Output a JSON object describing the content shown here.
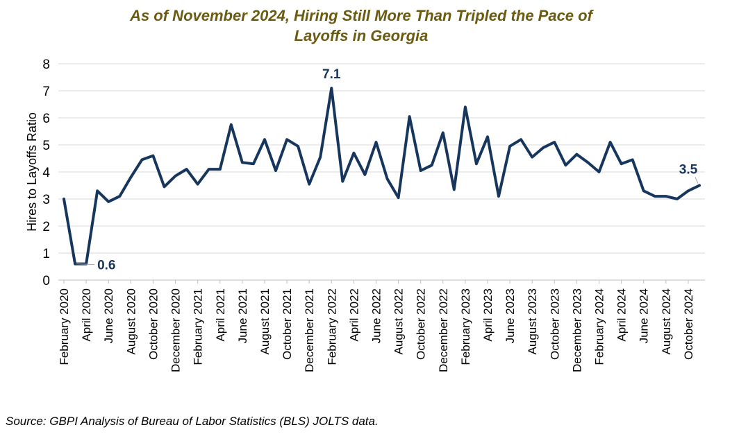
{
  "title_line1": "As of November 2024, Hiring Still More Than Tripled the Pace of",
  "title_line2": "Layoffs in Georgia",
  "source": "Source: GBPI Analysis of Bureau of Labor Statistics (BLS) JOLTS data.",
  "colors": {
    "line": "#17365d",
    "title": "#6b5a12",
    "grid": "#d9d9d9"
  },
  "chart_data": {
    "type": "line",
    "title": "As of November 2024, Hiring Still More Than Tripled the Pace of Layoffs in Georgia",
    "xlabel": "",
    "ylabel": "Hires to Layoffs Ratio",
    "ylim": [
      0,
      8
    ],
    "yticks": [
      0,
      1,
      2,
      3,
      4,
      5,
      6,
      7,
      8
    ],
    "grid": true,
    "legend": "none",
    "x": [
      "February 2020",
      "March 2020",
      "April 2020",
      "May 2020",
      "June 2020",
      "July 2020",
      "August 2020",
      "September 2020",
      "October 2020",
      "November 2020",
      "December 2020",
      "January 2021",
      "February 2021",
      "March 2021",
      "April 2021",
      "May 2021",
      "June 2021",
      "July 2021",
      "August 2021",
      "September 2021",
      "October 2021",
      "November 2021",
      "December 2021",
      "January 2022",
      "February 2022",
      "March 2022",
      "April 2022",
      "May 2022",
      "June 2022",
      "July 2022",
      "August 2022",
      "September 2022",
      "October 2022",
      "November 2022",
      "December 2022",
      "January 2023",
      "February 2023",
      "March 2023",
      "April 2023",
      "May 2023",
      "June 2023",
      "July 2023",
      "August 2023",
      "September 2023",
      "October 2023",
      "November 2023",
      "December 2023",
      "January 2024",
      "February 2024",
      "March 2024",
      "April 2024",
      "May 2024",
      "June 2024",
      "July 2024",
      "August 2024",
      "September 2024",
      "October 2024",
      "November 2024"
    ],
    "x_tick_labels": [
      "February 2020",
      "April 2020",
      "June 2020",
      "August 2020",
      "October 2020",
      "December 2020",
      "February 2021",
      "April 2021",
      "June 2021",
      "August 2021",
      "October 2021",
      "December 2021",
      "February 2022",
      "April 2022",
      "June 2022",
      "August 2022",
      "October 2022",
      "December 2022",
      "February 2023",
      "April 2023",
      "June 2023",
      "August 2023",
      "October 2023",
      "December 2023",
      "February 2024",
      "April 2024",
      "June 2024",
      "August 2024",
      "October 2024"
    ],
    "series": [
      {
        "values": [
          3.0,
          0.6,
          0.6,
          3.3,
          2.9,
          3.1,
          3.8,
          4.45,
          4.6,
          3.45,
          3.85,
          4.1,
          3.55,
          4.1,
          4.1,
          5.75,
          4.35,
          4.3,
          5.2,
          4.05,
          5.2,
          4.95,
          3.55,
          4.55,
          7.1,
          3.65,
          4.7,
          3.9,
          5.1,
          3.75,
          3.05,
          6.05,
          4.05,
          4.25,
          5.45,
          3.35,
          6.4,
          4.3,
          5.3,
          3.1,
          4.95,
          5.2,
          4.55,
          4.9,
          5.1,
          4.25,
          4.65,
          4.35,
          4.0,
          5.1,
          4.3,
          4.45,
          3.3,
          3.1,
          3.1,
          3.0,
          3.3,
          3.5
        ]
      }
    ],
    "annotations": [
      {
        "label": "0.6",
        "x": "March 2020",
        "y": 0.6
      },
      {
        "label": "7.1",
        "x": "February 2022",
        "y": 7.1
      },
      {
        "label": "3.5",
        "x": "November 2024",
        "y": 3.5
      }
    ]
  }
}
